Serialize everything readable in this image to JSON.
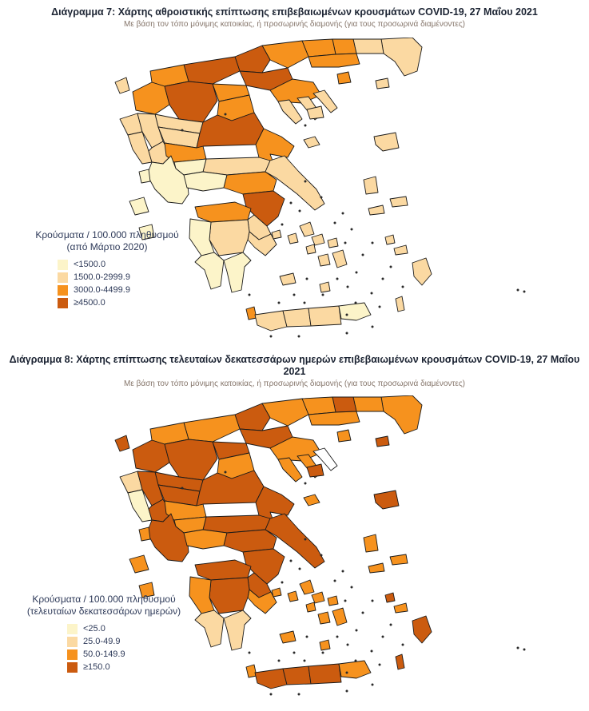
{
  "page": {
    "background": "#ffffff"
  },
  "figures": [
    {
      "title": "Διάγραμμα 7: Χάρτης αθροιστικής επίπτωσης επιβεβαιωμένων κρουσμάτων COVID-19, 27 Μαΐου 2021",
      "subtitle": "Με βάση τον τόπο μόνιμης κατοικίας, ή προσωρινής διαμονής (για τους προσωρινά διαμένοντες)",
      "legend_title_line1": "Κρούσματα / 100.000 πληθυσμού",
      "legend_title_line2": "(από Μάρτιο 2020)"
    },
    {
      "title": "Διάγραμμα 8: Χάρτης επίπτωσης τελευταίων δεκατεσσάρων ημερών επιβεβαιωμένων κρουσμάτων COVID-19, 27 Μαΐου 2021",
      "subtitle": "Με βάση τον τόπο μόνιμης κατοικίας, ή προσωρινής διαμονής (για τους προσωρινά διαμένοντες)",
      "legend_title_line1": "Κρούσματα / 100.000 πληθυσμού",
      "legend_title_line2": "(τελευταίων δεκατεσσάρων ημερών)"
    }
  ],
  "chart_data": [
    {
      "type": "choropleth",
      "title": "Διάγραμμα 7: Χάρτης αθροιστικής επίπτωσης επιβεβαιωμένων κρουσμάτων COVID-19, 27 Μαΐου 2021",
      "unit": "Κρούσματα / 100.000 πληθυσμού (από Μάρτιο 2020)",
      "legend_position": "left",
      "border_color": "#1a1a1a",
      "no_data_color": "#ffffff",
      "bins": [
        {
          "label": "<1500.0",
          "color": "#FCF4C9"
        },
        {
          "label": "1500.0-2999.9",
          "color": "#FBD9A2"
        },
        {
          "label": "3000.0-4499.9",
          "color": "#F6921E"
        },
        {
          "label": "≥4500.0",
          "color": "#CB5B0F"
        }
      ],
      "region_bins": {
        "evros": 2,
        "rodopi": 2,
        "xanthi": 3,
        "drama": 3,
        "kavala": 3,
        "thasos": 3,
        "samothraki": 2,
        "serres": 3,
        "kilkis": 4,
        "thessaloniki": 4,
        "pella": 4,
        "florina": 3,
        "kastoria": 3,
        "kozani": 4,
        "imathia": 3,
        "pieria": 3,
        "grevena": 2,
        "chalkidiki": 3,
        "kassandra": 2,
        "sithonia": 2,
        "athos": 2,
        "thesprotia": 2,
        "ioannina": 2,
        "preveza": 2,
        "arta": 2,
        "corfu": 2,
        "trikala": 2,
        "karditsa": 3,
        "larissa": 4,
        "magnesia": 3,
        "sporades": 2,
        "fthiotida": 2,
        "evrytania": 1,
        "aitoloakarnania": 1,
        "fokida": 1,
        "boeotia": 3,
        "evia": 2,
        "attica": 4,
        "achaia": 3,
        "corinthia": 2,
        "argolida": 2,
        "arcadia": 2,
        "ileia": 1,
        "messinia": 1,
        "laconia": 1,
        "lefkada": 1,
        "kefalonia": 1,
        "zakynthos": 1,
        "kythira": 3,
        "lemnos": 2,
        "lesvos": 2,
        "chios": 2,
        "samos": 2,
        "ikaria": 2,
        "aegina": 2,
        "kea": 2,
        "andros": 2,
        "tinos": 2,
        "mykonos": 2,
        "syros": 2,
        "paros": 2,
        "naxos": 2,
        "milos": 2,
        "santorini": 2,
        "kos": 2,
        "kalymnos": 2,
        "rhodes": 2,
        "karpathos": 2,
        "chania": 2,
        "rethymno": 2,
        "heraklion": 2,
        "lasithi": 1
      }
    },
    {
      "type": "choropleth",
      "title": "Διάγραμμα 8: Χάρτης επίπτωσης τελευταίων δεκατεσσάρων ημερών επιβεβαιωμένων κρουσμάτων COVID-19, 27 Μαΐου 2021",
      "unit": "Κρούσματα / 100.000 πληθυσμού (τελευταίων δεκατεσσάρων ημερών)",
      "legend_position": "left",
      "border_color": "#1a1a1a",
      "no_data_color": "#ffffff",
      "bins": [
        {
          "label": "<25.0",
          "color": "#FCF4C9"
        },
        {
          "label": "25.0-49.9",
          "color": "#FBD9A2"
        },
        {
          "label": "50.0-149.9",
          "color": "#F6921E"
        },
        {
          "label": "≥150.0",
          "color": "#CB5B0F"
        }
      ],
      "region_bins": {
        "evros": 3,
        "rodopi": 3,
        "xanthi": 4,
        "drama": 3,
        "kavala": 3,
        "thasos": 3,
        "samothraki": 4,
        "serres": 3,
        "kilkis": 4,
        "thessaloniki": 4,
        "pella": 3,
        "florina": 3,
        "kastoria": 4,
        "kozani": 4,
        "imathia": 4,
        "pieria": 3,
        "grevena": 4,
        "chalkidiki": 3,
        "kassandra": 3,
        "sithonia": 3,
        "athos": 0,
        "thesprotia": 2,
        "ioannina": 4,
        "preveza": 1,
        "arta": 4,
        "corfu": 4,
        "trikala": 4,
        "karditsa": 3,
        "larissa": 4,
        "magnesia": 4,
        "sporades": 3,
        "fthiotida": 4,
        "evrytania": 3,
        "aitoloakarnania": 4,
        "fokida": 3,
        "boeotia": 4,
        "evia": 4,
        "attica": 4,
        "achaia": 4,
        "corinthia": 4,
        "argolida": 3,
        "arcadia": 4,
        "ileia": 3,
        "messinia": 2,
        "laconia": 2,
        "lefkada": 3,
        "kefalonia": 3,
        "zakynthos": 3,
        "kythira": 3,
        "lemnos": 4,
        "lesvos": 4,
        "chios": 3,
        "samos": 3,
        "ikaria": 3,
        "aegina": 3,
        "kea": 3,
        "andros": 3,
        "tinos": 3,
        "mykonos": 3,
        "syros": 3,
        "paros": 3,
        "naxos": 3,
        "milos": 3,
        "santorini": 3,
        "kos": 3,
        "kalymnos": 4,
        "rhodes": 4,
        "karpathos": 4,
        "chania": 4,
        "rethymno": 4,
        "heraklion": 4,
        "lasithi": 3
      }
    }
  ]
}
